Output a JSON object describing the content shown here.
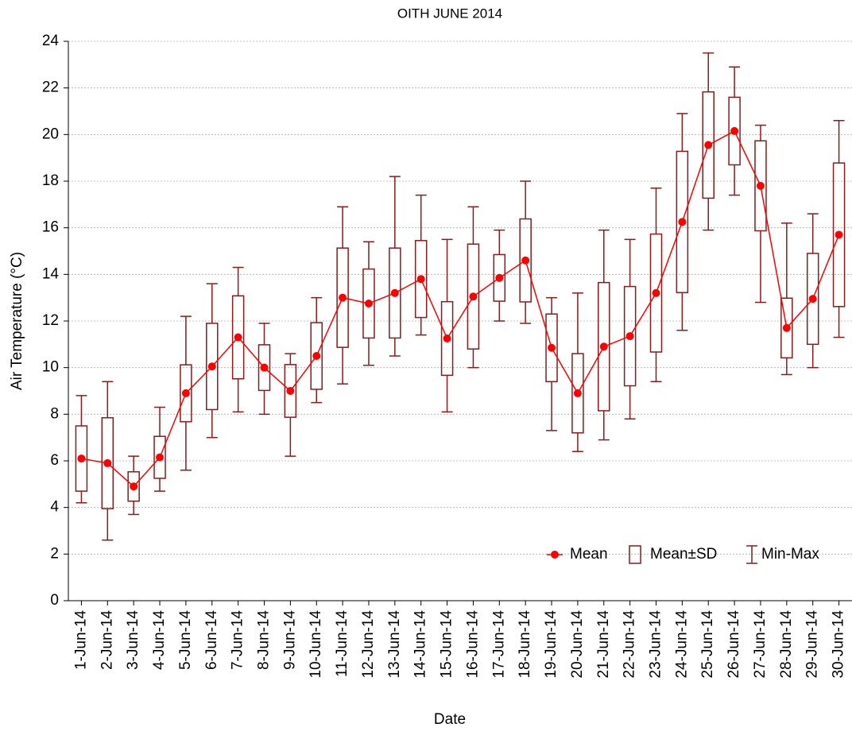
{
  "chart_data": {
    "type": "box",
    "title": "OITH JUNE 2014",
    "xlabel": "Date",
    "ylabel": "Air Temperature (°C)",
    "categories": [
      "1-Jun-14",
      "2-Jun-14",
      "3-Jun-14",
      "4-Jun-14",
      "5-Jun-14",
      "6-Jun-14",
      "7-Jun-14",
      "8-Jun-14",
      "9-Jun-14",
      "10-Jun-14",
      "11-Jun-14",
      "12-Jun-14",
      "13-Jun-14",
      "14-Jun-14",
      "15-Jun-14",
      "16-Jun-14",
      "17-Jun-14",
      "18-Jun-14",
      "19-Jun-14",
      "20-Jun-14",
      "21-Jun-14",
      "22-Jun-14",
      "23-Jun-14",
      "24-Jun-14",
      "25-Jun-14",
      "26-Jun-14",
      "27-Jun-14",
      "28-Jun-14",
      "29-Jun-14",
      "30-Jun-14"
    ],
    "mean": [
      6.1,
      5.9,
      4.9,
      6.15,
      8.9,
      10.05,
      11.3,
      10.0,
      9.0,
      10.5,
      13.0,
      12.75,
      13.2,
      13.8,
      11.25,
      13.05,
      13.85,
      14.6,
      10.85,
      8.9,
      10.9,
      11.35,
      13.2,
      16.25,
      19.55,
      20.15,
      17.8,
      11.7,
      12.95,
      15.7
    ],
    "sd": [
      1.4,
      1.95,
      0.63,
      0.9,
      1.22,
      1.85,
      1.78,
      0.98,
      1.13,
      1.43,
      2.13,
      1.48,
      1.93,
      1.65,
      1.58,
      2.25,
      1.0,
      1.78,
      1.45,
      1.7,
      2.75,
      2.13,
      2.53,
      3.03,
      2.28,
      1.45,
      1.93,
      1.28,
      1.95,
      3.08
    ],
    "min": [
      4.2,
      2.6,
      3.7,
      4.7,
      5.6,
      7.0,
      8.1,
      8.0,
      6.2,
      8.5,
      9.3,
      10.1,
      10.5,
      11.4,
      8.1,
      10.0,
      12.0,
      11.9,
      7.3,
      6.4,
      6.9,
      7.8,
      9.4,
      11.6,
      15.9,
      17.4,
      12.8,
      9.7,
      10.0,
      11.3
    ],
    "max": [
      8.8,
      9.4,
      6.2,
      8.3,
      12.2,
      13.6,
      14.3,
      11.9,
      10.6,
      13.0,
      16.9,
      15.4,
      18.2,
      17.4,
      15.5,
      16.9,
      15.9,
      18.0,
      13.0,
      13.2,
      15.9,
      15.5,
      17.7,
      20.9,
      23.5,
      22.9,
      20.4,
      16.2,
      16.6,
      20.6
    ],
    "legend": [
      "Mean",
      "Mean±SD",
      "Min-Max"
    ],
    "legend_position": "lower right",
    "mean_color": "#ff0000",
    "box_color": "#8b1a1a",
    "ylim": [
      0,
      24
    ],
    "yticks": [
      0,
      2,
      4,
      6,
      8,
      10,
      12,
      14,
      16,
      18,
      20,
      22,
      24
    ],
    "grid": true
  }
}
